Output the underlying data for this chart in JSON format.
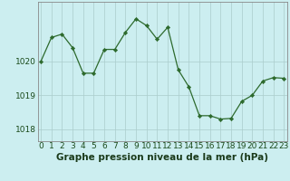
{
  "x": [
    0,
    1,
    2,
    3,
    4,
    5,
    6,
    7,
    8,
    9,
    10,
    11,
    12,
    13,
    14,
    15,
    16,
    17,
    18,
    19,
    20,
    21,
    22,
    23
  ],
  "y": [
    1020.0,
    1020.7,
    1020.8,
    1020.4,
    1019.65,
    1019.65,
    1020.35,
    1020.35,
    1020.85,
    1021.25,
    1021.05,
    1020.65,
    1021.0,
    1019.75,
    1019.25,
    1018.4,
    1018.4,
    1018.3,
    1018.32,
    1018.82,
    1019.0,
    1019.42,
    1019.52,
    1019.5
  ],
  "line_color": "#2d6a2d",
  "marker_color": "#2d6a2d",
  "bg_color": "#cceef0",
  "grid_color": "#aacccc",
  "ylabel_ticks": [
    1018,
    1019,
    1020
  ],
  "ylim": [
    1017.65,
    1021.75
  ],
  "xlim": [
    -0.3,
    23.3
  ],
  "xlabel": "Graphe pression niveau de la mer (hPa)",
  "xlabel_fontsize": 7.5,
  "tick_fontsize": 6.5
}
